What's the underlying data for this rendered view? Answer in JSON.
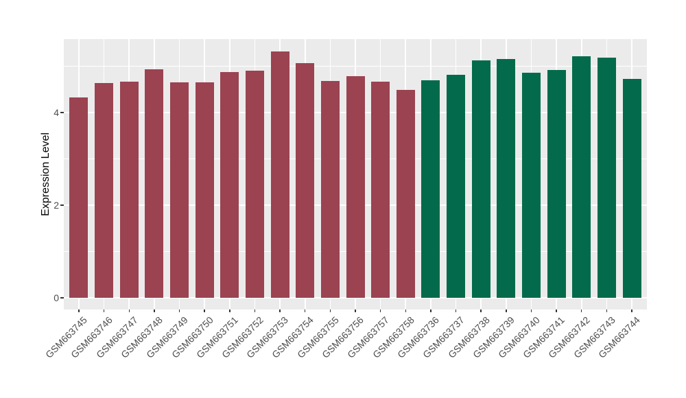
{
  "chart_data": {
    "type": "bar",
    "title": "",
    "xlabel": "",
    "ylabel": "Expression Level",
    "categories": [
      "GSM663745",
      "GSM663746",
      "GSM663747",
      "GSM663748",
      "GSM663749",
      "GSM663750",
      "GSM663751",
      "GSM663752",
      "GSM663753",
      "GSM663754",
      "GSM663755",
      "GSM663756",
      "GSM663757",
      "GSM663758",
      "GSM663736",
      "GSM663737",
      "GSM663738",
      "GSM663739",
      "GSM663740",
      "GSM663741",
      "GSM663742",
      "GSM663743",
      "GSM663744"
    ],
    "values": [
      4.32,
      4.63,
      4.66,
      4.94,
      4.65,
      4.65,
      4.88,
      4.9,
      5.32,
      5.07,
      4.68,
      4.79,
      4.66,
      4.49,
      4.69,
      4.82,
      5.12,
      5.15,
      4.86,
      4.92,
      5.22,
      5.18,
      4.73
    ],
    "bar_groups": [
      "A",
      "A",
      "A",
      "A",
      "A",
      "A",
      "A",
      "A",
      "A",
      "A",
      "A",
      "A",
      "A",
      "A",
      "B",
      "B",
      "B",
      "B",
      "B",
      "B",
      "B",
      "B",
      "B"
    ],
    "group_colors": {
      "A": "#9B4351",
      "B": "#036B4B"
    },
    "ylim": [
      0,
      5.65
    ],
    "yticks": [
      0,
      2,
      4
    ],
    "ytick_labels": [
      "0",
      "2",
      "4"
    ],
    "minor_yticks": [
      1,
      3,
      5
    ],
    "grid": "major and minor horizontal white lines plus vertical white lines at each category center, on grey panel",
    "legend_position": "none",
    "x_tick_label_rotation_deg": 45
  },
  "style": {
    "panel_background": "#EBEBEB",
    "gridline_color": "#FFFFFF",
    "tick_mark_color": "#333333",
    "axis_text_color": "#4D4D4D",
    "axis_title_color": "#000000",
    "figure_background": "#FFFFFF"
  }
}
